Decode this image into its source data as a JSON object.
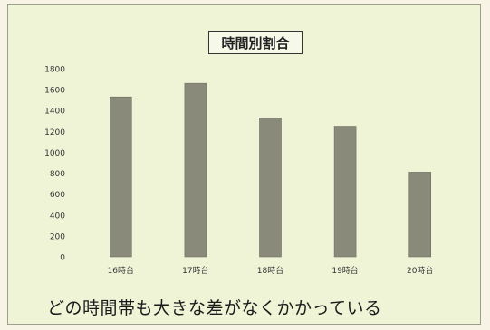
{
  "chart_data": {
    "type": "bar",
    "title": "時間別割合",
    "categories": [
      "16時台",
      "17時台",
      "18時台",
      "19時台",
      "20時台"
    ],
    "values": [
      1530,
      1660,
      1330,
      1250,
      810
    ],
    "ylim": [
      0,
      1800
    ],
    "yticks": [
      0,
      200,
      400,
      600,
      800,
      1000,
      1200,
      1400,
      1600,
      1800
    ],
    "grid": false,
    "bar_color": "#8a8a7a"
  },
  "caption": "どの時間帯も大きな差がなくかかっている"
}
